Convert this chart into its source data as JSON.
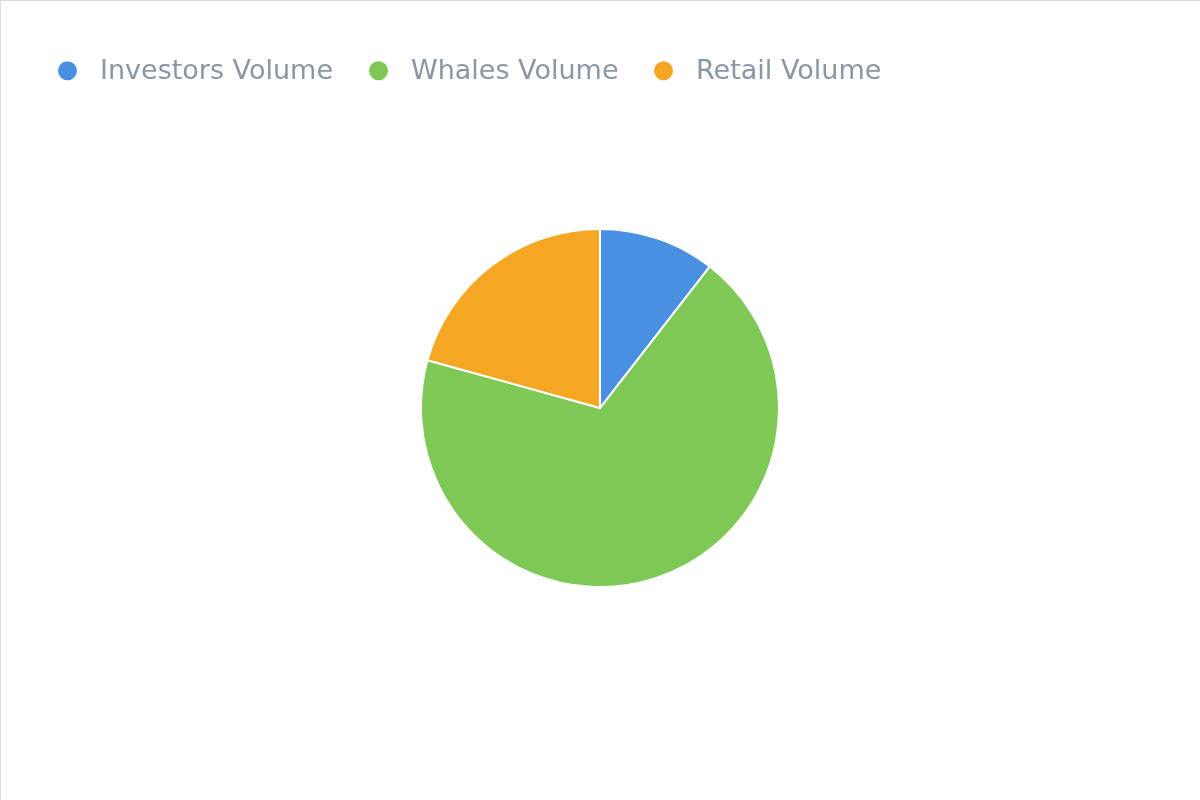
{
  "chart_data": {
    "type": "pie",
    "categories": [
      "Investors Volume",
      "Whales Volume",
      "Retail Volume"
    ],
    "values": [
      10.5,
      68.8,
      20.7
    ],
    "colors": [
      "#4a90e2",
      "#7ec856",
      "#f5a623"
    ],
    "legend": "top left"
  }
}
